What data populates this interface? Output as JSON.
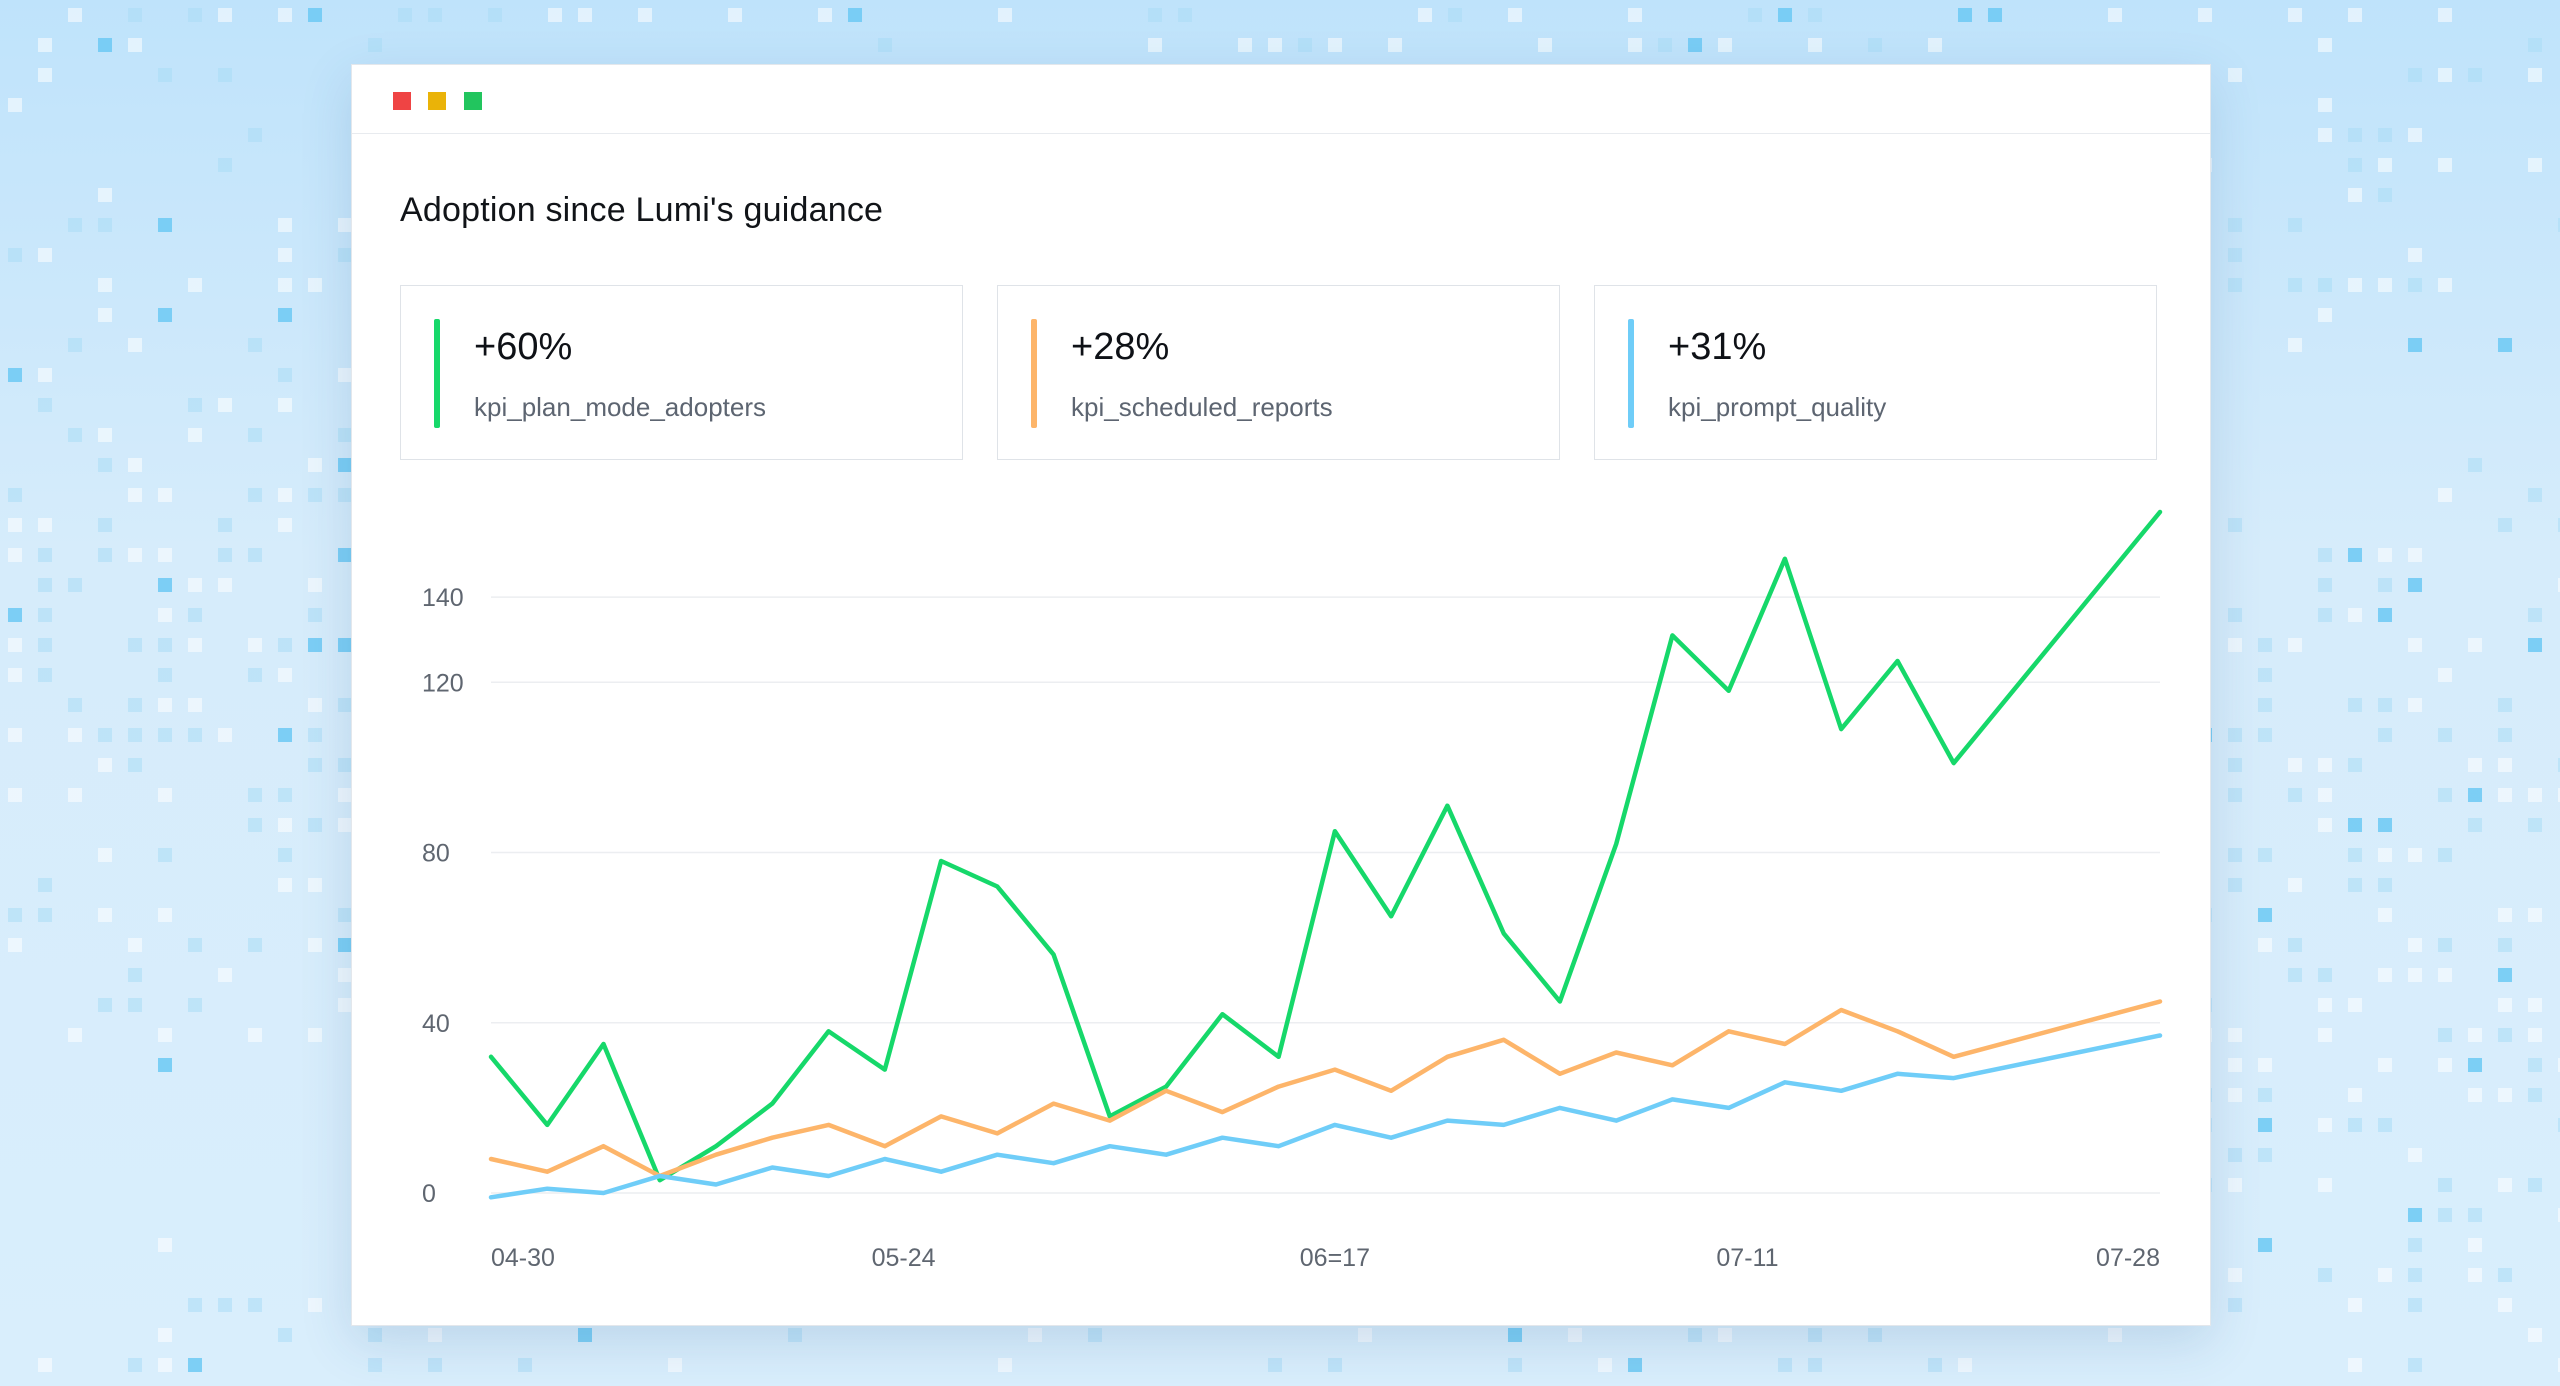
{
  "window": {
    "controls": [
      {
        "name": "close",
        "color": "#ef4444"
      },
      {
        "name": "minimize",
        "color": "#eab308"
      },
      {
        "name": "maximize",
        "color": "#22c55e"
      }
    ]
  },
  "dashboard": {
    "title": "Adoption since Lumi's guidance",
    "kpis": [
      {
        "value": "+60%",
        "label": "kpi_plan_mode_adopters",
        "color": "#16d86a"
      },
      {
        "value": "+28%",
        "label": "kpi_scheduled_reports",
        "color": "#fdb56a"
      },
      {
        "value": "+31%",
        "label": "kpi_prompt_quality",
        "color": "#6fcdf8"
      }
    ]
  },
  "chart_data": {
    "type": "line",
    "x": [
      "04-30",
      "05-01",
      "05-02",
      "05-03",
      "05-04",
      "05-05",
      "05-06",
      "05-07",
      "05-08",
      "05-09",
      "05-10",
      "05-11",
      "05-12",
      "05-13",
      "05-14",
      "05-15",
      "05-16",
      "05-17",
      "05-18",
      "05-19",
      "05-20",
      "05-21",
      "05-22",
      "05-23",
      "05-24",
      "05-25",
      "05-26",
      "05-27",
      "05-28",
      "05-29",
      "05-30",
      "05-31",
      "06-01",
      "06-02",
      "06-03",
      "06-04",
      "06-05",
      "06-06",
      "06-07",
      "06-08",
      "06-09",
      "06-10",
      "06-11",
      "06-12",
      "06-13",
      "06-14",
      "06-15",
      "06-16",
      "06-17",
      "06-18",
      "06-19",
      "06-20",
      "06-21",
      "06-22",
      "06-23",
      "06-24",
      "06-25",
      "06-26",
      "06-27",
      "06-28",
      "06-29",
      "06-30",
      "07-01",
      "07-02",
      "07-03",
      "07-04",
      "07-05",
      "07-06",
      "07-07",
      "07-08",
      "07-09",
      "07-10",
      "07-11",
      "07-12",
      "07-13",
      "07-14",
      "07-15",
      "07-16",
      "07-17",
      "07-18",
      "07-19",
      "07-20",
      "07-21",
      "07-22",
      "07-23",
      "07-24",
      "07-25",
      "07-26",
      "07-27",
      "07-28"
    ],
    "x_tick_labels": [
      "04-30",
      "05-24",
      "06=17",
      "07-11",
      "07-28"
    ],
    "y_ticks": [
      0,
      40,
      80,
      120,
      140
    ],
    "ylim": [
      0,
      160
    ],
    "grid": true,
    "series": [
      {
        "key": "kpi_plan_mode_adopters",
        "color": "#16d86a",
        "points": [
          [
            0,
            32
          ],
          [
            3,
            16
          ],
          [
            6,
            35
          ],
          [
            9,
            3
          ],
          [
            12,
            11
          ],
          [
            15,
            21
          ],
          [
            18,
            38
          ],
          [
            21,
            29
          ],
          [
            24,
            78
          ],
          [
            27,
            72
          ],
          [
            30,
            56
          ],
          [
            33,
            18
          ],
          [
            36,
            25
          ],
          [
            39,
            42
          ],
          [
            42,
            32
          ],
          [
            45,
            85
          ],
          [
            48,
            65
          ],
          [
            51,
            91
          ],
          [
            54,
            61
          ],
          [
            57,
            45
          ],
          [
            60,
            82
          ],
          [
            63,
            131
          ],
          [
            66,
            118
          ],
          [
            69,
            149
          ],
          [
            72,
            109
          ],
          [
            75,
            125
          ],
          [
            78,
            101
          ],
          [
            89,
            160
          ]
        ]
      },
      {
        "key": "kpi_scheduled_reports",
        "color": "#fdb56a",
        "points": [
          [
            0,
            8
          ],
          [
            3,
            5
          ],
          [
            6,
            11
          ],
          [
            9,
            4
          ],
          [
            12,
            9
          ],
          [
            15,
            13
          ],
          [
            18,
            16
          ],
          [
            21,
            11
          ],
          [
            24,
            18
          ],
          [
            27,
            14
          ],
          [
            30,
            21
          ],
          [
            33,
            17
          ],
          [
            36,
            24
          ],
          [
            39,
            19
          ],
          [
            42,
            25
          ],
          [
            45,
            29
          ],
          [
            48,
            24
          ],
          [
            51,
            32
          ],
          [
            54,
            36
          ],
          [
            57,
            28
          ],
          [
            60,
            33
          ],
          [
            63,
            30
          ],
          [
            66,
            38
          ],
          [
            69,
            35
          ],
          [
            72,
            43
          ],
          [
            75,
            38
          ],
          [
            78,
            32
          ],
          [
            89,
            45
          ]
        ]
      },
      {
        "key": "kpi_prompt_quality",
        "color": "#6fcdf8",
        "points": [
          [
            0,
            -1
          ],
          [
            3,
            1
          ],
          [
            6,
            0
          ],
          [
            9,
            4
          ],
          [
            12,
            2
          ],
          [
            15,
            6
          ],
          [
            18,
            4
          ],
          [
            21,
            8
          ],
          [
            24,
            5
          ],
          [
            27,
            9
          ],
          [
            30,
            7
          ],
          [
            33,
            11
          ],
          [
            36,
            9
          ],
          [
            39,
            13
          ],
          [
            42,
            11
          ],
          [
            45,
            16
          ],
          [
            48,
            13
          ],
          [
            51,
            17
          ],
          [
            54,
            16
          ],
          [
            57,
            20
          ],
          [
            60,
            17
          ],
          [
            63,
            22
          ],
          [
            66,
            20
          ],
          [
            69,
            26
          ],
          [
            72,
            24
          ],
          [
            75,
            28
          ],
          [
            78,
            27
          ],
          [
            89,
            37
          ]
        ]
      }
    ]
  }
}
